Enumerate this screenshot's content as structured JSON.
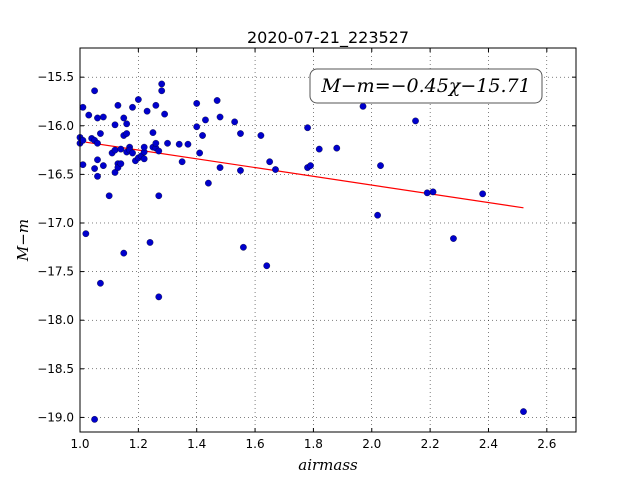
{
  "chart_data": {
    "type": "scatter",
    "title": "2020-07-21_223527",
    "xlabel": "airmass",
    "ylabel": "M−m",
    "xlim": [
      1.0,
      2.7
    ],
    "ylim": [
      -19.15,
      -15.2
    ],
    "y_inverted": true,
    "grid": true,
    "grid_style": "dotted",
    "x_ticks": [
      1.0,
      1.2,
      1.4,
      1.6,
      1.8,
      2.0,
      2.2,
      2.4,
      2.6
    ],
    "x_tick_labels": [
      "1.0",
      "1.2",
      "1.4",
      "1.6",
      "1.8",
      "2.0",
      "2.2",
      "2.4",
      "2.6"
    ],
    "y_ticks": [
      -15.5,
      -16.0,
      -16.5,
      -17.0,
      -17.5,
      -18.0,
      -18.5,
      -19.0
    ],
    "y_tick_labels": [
      "−15.5",
      "−16.0",
      "−16.5",
      "−17.0",
      "−17.5",
      "−18.0",
      "−18.5",
      "−19.0"
    ],
    "annotation": "M−m=−0.45χ−15.71",
    "fit_line": {
      "slope": -0.45,
      "intercept": -15.71,
      "x_range": [
        1.02,
        2.52
      ],
      "color": "#ff0000"
    },
    "marker_color": "#0000cc",
    "points": [
      [
        1.0,
        -16.12
      ],
      [
        1.0,
        -16.18
      ],
      [
        1.01,
        -16.15
      ],
      [
        1.01,
        -15.81
      ],
      [
        1.01,
        -16.4
      ],
      [
        1.02,
        -17.11
      ],
      [
        1.03,
        -15.89
      ],
      [
        1.04,
        -16.13
      ],
      [
        1.05,
        -15.64
      ],
      [
        1.05,
        -16.44
      ],
      [
        1.05,
        -16.15
      ],
      [
        1.05,
        -19.02
      ],
      [
        1.06,
        -16.52
      ],
      [
        1.06,
        -16.35
      ],
      [
        1.06,
        -16.18
      ],
      [
        1.06,
        -15.92
      ],
      [
        1.07,
        -16.08
      ],
      [
        1.07,
        -17.62
      ],
      [
        1.08,
        -16.41
      ],
      [
        1.08,
        -15.91
      ],
      [
        1.1,
        -16.72
      ],
      [
        1.11,
        -16.28
      ],
      [
        1.12,
        -15.99
      ],
      [
        1.12,
        -16.48
      ],
      [
        1.12,
        -16.25
      ],
      [
        1.13,
        -16.39
      ],
      [
        1.13,
        -16.43
      ],
      [
        1.13,
        -15.79
      ],
      [
        1.14,
        -16.24
      ],
      [
        1.14,
        -16.39
      ],
      [
        1.15,
        -17.31
      ],
      [
        1.15,
        -15.92
      ],
      [
        1.15,
        -16.1
      ],
      [
        1.16,
        -16.27
      ],
      [
        1.16,
        -16.08
      ],
      [
        1.16,
        -15.98
      ],
      [
        1.17,
        -16.22
      ],
      [
        1.17,
        -16.25
      ],
      [
        1.18,
        -16.28
      ],
      [
        1.18,
        -15.81
      ],
      [
        1.19,
        -16.36
      ],
      [
        1.2,
        -16.33
      ],
      [
        1.2,
        -15.73
      ],
      [
        1.21,
        -16.31
      ],
      [
        1.22,
        -16.27
      ],
      [
        1.22,
        -16.22
      ],
      [
        1.22,
        -16.34
      ],
      [
        1.23,
        -15.85
      ],
      [
        1.24,
        -17.2
      ],
      [
        1.25,
        -16.22
      ],
      [
        1.25,
        -16.07
      ],
      [
        1.26,
        -16.23
      ],
      [
        1.26,
        -16.18
      ],
      [
        1.26,
        -15.79
      ],
      [
        1.27,
        -17.76
      ],
      [
        1.27,
        -16.72
      ],
      [
        1.27,
        -16.26
      ],
      [
        1.28,
        -15.64
      ],
      [
        1.28,
        -15.57
      ],
      [
        1.29,
        -15.88
      ],
      [
        1.3,
        -16.18
      ],
      [
        1.34,
        -16.19
      ],
      [
        1.35,
        -16.37
      ],
      [
        1.37,
        -16.19
      ],
      [
        1.4,
        -16.01
      ],
      [
        1.4,
        -15.77
      ],
      [
        1.41,
        -16.28
      ],
      [
        1.42,
        -16.1
      ],
      [
        1.43,
        -15.94
      ],
      [
        1.44,
        -16.59
      ],
      [
        1.47,
        -15.74
      ],
      [
        1.48,
        -16.43
      ],
      [
        1.48,
        -15.91
      ],
      [
        1.53,
        -15.96
      ],
      [
        1.55,
        -16.08
      ],
      [
        1.55,
        -16.46
      ],
      [
        1.56,
        -17.25
      ],
      [
        1.62,
        -16.1
      ],
      [
        1.64,
        -17.44
      ],
      [
        1.65,
        -16.37
      ],
      [
        1.67,
        -16.45
      ],
      [
        1.78,
        -16.02
      ],
      [
        1.78,
        -16.43
      ],
      [
        1.79,
        -16.41
      ],
      [
        1.82,
        -16.24
      ],
      [
        1.88,
        -16.23
      ],
      [
        1.97,
        -15.8
      ],
      [
        2.02,
        -16.92
      ],
      [
        2.03,
        -16.41
      ],
      [
        2.15,
        -15.95
      ],
      [
        2.19,
        -16.69
      ],
      [
        2.21,
        -16.68
      ],
      [
        2.28,
        -17.16
      ],
      [
        2.38,
        -16.7
      ],
      [
        2.52,
        -18.94
      ]
    ]
  }
}
